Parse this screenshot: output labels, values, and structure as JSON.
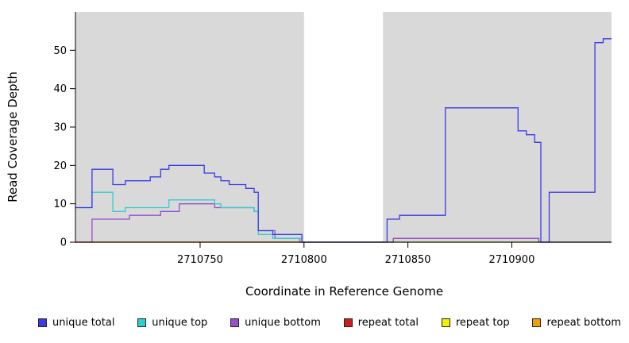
{
  "figure": {
    "ylabel": "Read Coverage Depth",
    "xlabel": "Coordinate in Reference Genome"
  },
  "chart_data": {
    "type": "line",
    "step": true,
    "title": "",
    "xlabel": "Coordinate in Reference Genome",
    "ylabel": "Read Coverage Depth",
    "xlim": [
      2710690,
      2710948
    ],
    "ylim": [
      0,
      60
    ],
    "xticks": [
      2710750,
      2710800,
      2710850,
      2710900
    ],
    "yticks": [
      0,
      10,
      20,
      30,
      40,
      50
    ],
    "grid": false,
    "legend_position": "bottom",
    "plot_bg": "#d9d9d9",
    "gap_region": {
      "x0": 2710800,
      "x1": 2710838,
      "color": "#ffffff"
    },
    "series": [
      {
        "name": "unique total",
        "color": "#3a3ae6",
        "points": [
          [
            2710690,
            9
          ],
          [
            2710698,
            19
          ],
          [
            2710708,
            15
          ],
          [
            2710714,
            16
          ],
          [
            2710726,
            17
          ],
          [
            2710731,
            19
          ],
          [
            2710735,
            20
          ],
          [
            2710752,
            18
          ],
          [
            2710757,
            17
          ],
          [
            2710760,
            16
          ],
          [
            2710764,
            15
          ],
          [
            2710772,
            14
          ],
          [
            2710776,
            13
          ],
          [
            2710778,
            3
          ],
          [
            2710785,
            2
          ],
          [
            2710799,
            0
          ],
          [
            2710840,
            6
          ],
          [
            2710846,
            7
          ],
          [
            2710868,
            35
          ],
          [
            2710903,
            29
          ],
          [
            2710907,
            28
          ],
          [
            2710911,
            26
          ],
          [
            2710914,
            0
          ],
          [
            2710918,
            13
          ],
          [
            2710940,
            52
          ],
          [
            2710944,
            53
          ]
        ]
      },
      {
        "name": "unique top",
        "color": "#30cfcf",
        "points": [
          [
            2710690,
            9
          ],
          [
            2710698,
            13
          ],
          [
            2710708,
            8
          ],
          [
            2710714,
            9
          ],
          [
            2710735,
            11
          ],
          [
            2710757,
            10
          ],
          [
            2710760,
            9
          ],
          [
            2710776,
            8
          ],
          [
            2710778,
            2
          ],
          [
            2710785,
            1
          ],
          [
            2710799,
            0
          ]
        ]
      },
      {
        "name": "unique bottom",
        "color": "#9650cd",
        "points": [
          [
            2710690,
            0
          ],
          [
            2710698,
            6
          ],
          [
            2710716,
            7
          ],
          [
            2710731,
            8
          ],
          [
            2710740,
            10
          ],
          [
            2710757,
            9
          ],
          [
            2710776,
            8
          ],
          [
            2710778,
            3
          ],
          [
            2710786,
            1
          ],
          [
            2710798,
            0
          ],
          [
            2710843,
            1
          ],
          [
            2710913,
            0
          ]
        ]
      },
      {
        "name": "repeat total",
        "color": "#cc2020",
        "points": [
          [
            2710690,
            0
          ],
          [
            2710843,
            1
          ],
          [
            2710913,
            0
          ]
        ]
      },
      {
        "name": "repeat top",
        "color": "#f2f200",
        "points": [
          [
            2710690,
            0
          ]
        ]
      },
      {
        "name": "repeat bottom",
        "color": "#f0a000",
        "points": [
          [
            2710690,
            0
          ]
        ]
      }
    ]
  }
}
